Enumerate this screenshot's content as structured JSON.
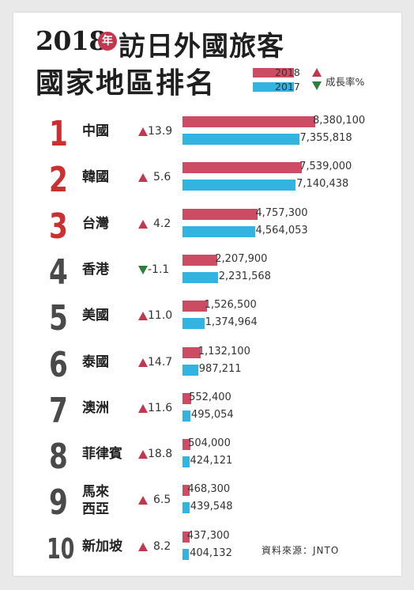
{
  "title": {
    "year": "2018",
    "badge": "年",
    "rest": "訪日外國旅客",
    "line2": "國家地區排名"
  },
  "legend": {
    "series_2018": "2018",
    "series_2017": "2017",
    "growth_label": "成長率%"
  },
  "colors": {
    "series_2018": "#cc4d63",
    "series_2017": "#33b4e0",
    "up": "#c1384e",
    "down": "#2e7d3a",
    "rank_red": "#cc2f2f",
    "rank_dark": "#4a4a4a"
  },
  "chart_data": {
    "type": "bar",
    "orientation": "horizontal",
    "categories": [
      "中國",
      "韓國",
      "台灣",
      "香港",
      "美國",
      "泰國",
      "澳洲",
      "菲律賓",
      "馬來西亞",
      "新加坡"
    ],
    "ranks": [
      "1",
      "2",
      "3",
      "4",
      "5",
      "6",
      "7",
      "8",
      "9",
      "10"
    ],
    "series": [
      {
        "name": "2018",
        "values": [
          8380100,
          7539000,
          4757300,
          2207900,
          1526500,
          1132100,
          552400,
          504000,
          468300,
          437300
        ]
      },
      {
        "name": "2017",
        "values": [
          7355818,
          7140438,
          4564053,
          2231568,
          1374964,
          987211,
          495054,
          424121,
          439548,
          404132
        ]
      }
    ],
    "value_labels_2018": [
      "8,380,100",
      "7,539,000",
      "4,757,300",
      "2,207,900",
      "1,526,500",
      "1,132,100",
      "552,400",
      "504,000",
      "468,300",
      "437,300"
    ],
    "value_labels_2017": [
      "7,355,818",
      "7,140,438",
      "4,564,053",
      "2,231,568",
      "1,374,964",
      "987,211",
      "495,054",
      "424,121",
      "439,548",
      "404,132"
    ],
    "growth_rates": [
      13.9,
      5.6,
      4.2,
      -1.1,
      11.0,
      14.7,
      11.6,
      18.8,
      6.5,
      8.2
    ],
    "growth_labels": [
      "13.9",
      "5.6",
      "4.2",
      "-1.1",
      "11.0",
      "14.7",
      "11.6",
      "18.8",
      "6.5",
      "8.2"
    ],
    "growth_direction": [
      "up",
      "up",
      "up",
      "down",
      "up",
      "up",
      "up",
      "up",
      "up",
      "up"
    ],
    "rank_color": [
      "red",
      "red",
      "red",
      "dark",
      "dark",
      "dark",
      "dark",
      "dark",
      "dark",
      "dark"
    ],
    "country_lines": [
      [
        "中國"
      ],
      [
        "韓國"
      ],
      [
        "台灣"
      ],
      [
        "香港"
      ],
      [
        "美國"
      ],
      [
        "泰國"
      ],
      [
        "澳洲"
      ],
      [
        "菲律賓"
      ],
      [
        "馬來",
        "西亞"
      ],
      [
        "新加坡"
      ]
    ],
    "legend_placement": "top-right",
    "grid": false
  },
  "source": "資料來源：JNTO"
}
